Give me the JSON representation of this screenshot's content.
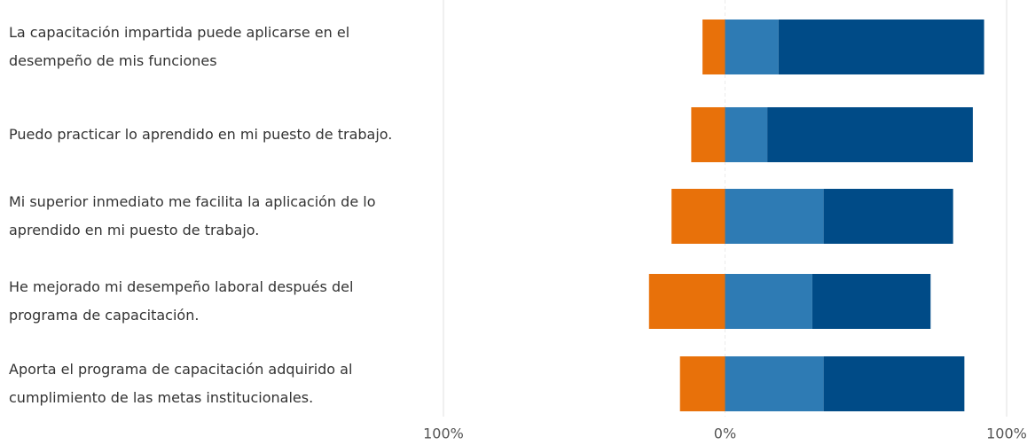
{
  "chart_data": {
    "type": "diverging_bar",
    "categories": [
      "La capacitación impartida puede aplicarse en el\ndesempeño de mis funciones",
      "Puedo practicar lo aprendido en mi puesto de trabajo.",
      "Mi superior inmediato me facilita la aplicación de lo\naprendido en mi puesto de trabajo.",
      "He mejorado mi desempeño laboral después del\nprograma de capacitación.",
      "Aporta el programa de capacitación adquirido al\ncumplimiento de las metas institucionales."
    ],
    "series": [
      {
        "color": "#e8710a",
        "values": [
          -8,
          -12,
          -19,
          -27,
          -16
        ]
      },
      {
        "color": "#2e7bb4",
        "values": [
          19,
          15,
          35,
          31,
          35
        ]
      },
      {
        "color": "#004b87",
        "values": [
          73,
          73,
          46,
          42,
          50
        ]
      }
    ],
    "xlim": [
      -100,
      100
    ],
    "xticks": [
      {
        "value": -100,
        "label": "100%"
      },
      {
        "value": 0,
        "label": "0%"
      },
      {
        "value": 100,
        "label": "100%"
      }
    ],
    "grid": true
  }
}
